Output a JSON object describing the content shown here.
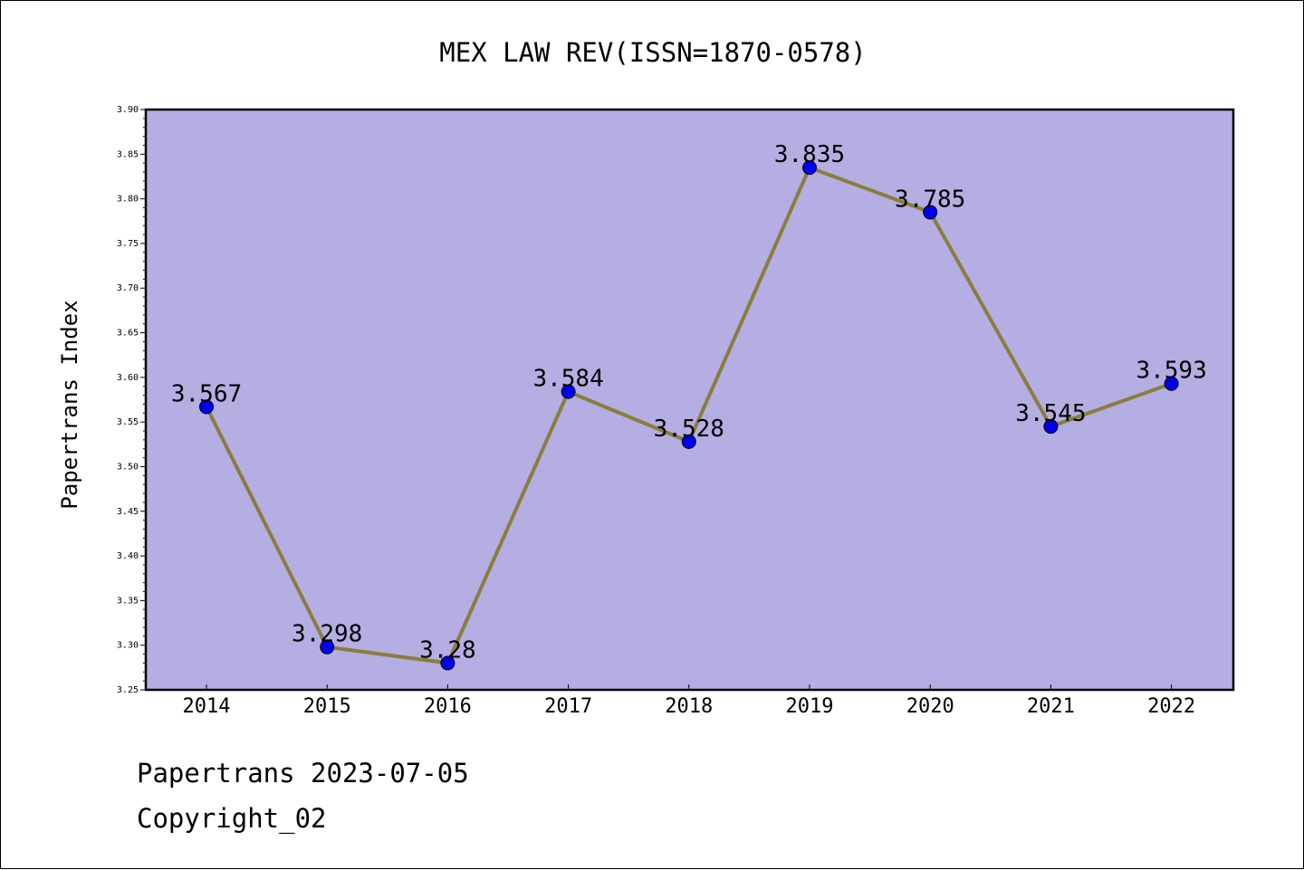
{
  "chart_data": {
    "type": "line",
    "title": "MEX LAW REV(ISSN=1870-0578)",
    "xlabel": "",
    "ylabel": "Papertrans Index",
    "categories": [
      "2014",
      "2015",
      "2016",
      "2017",
      "2018",
      "2019",
      "2020",
      "2021",
      "2022"
    ],
    "series": [
      {
        "values": [
          3.567,
          3.298,
          3.28,
          3.584,
          3.528,
          3.835,
          3.785,
          3.545,
          3.593
        ],
        "labels": [
          "3.567",
          "3.298",
          "3.28",
          "3.584",
          "3.528",
          "3.835",
          "3.785",
          "3.545",
          "3.593"
        ]
      }
    ],
    "ylim": [
      3.25,
      3.9
    ],
    "yticks": [
      "3.25",
      "3.30",
      "3.35",
      "3.40",
      "3.45",
      "3.50",
      "3.55",
      "3.60",
      "3.65",
      "3.70",
      "3.75",
      "3.80",
      "3.85",
      "3.90"
    ],
    "grid": false,
    "legend": "none",
    "colors": {
      "plot_background": "#b5aee2",
      "line": "#8b7d3c",
      "marker": "#0000ee"
    }
  },
  "footer": {
    "date_line": "Papertrans 2023-07-05",
    "copyright": "Copyright_02"
  }
}
